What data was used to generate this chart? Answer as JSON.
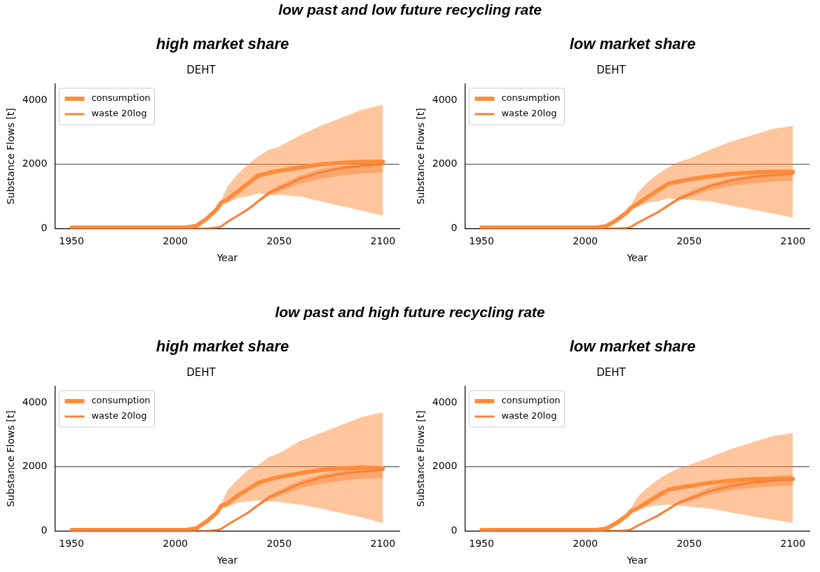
{
  "chart_data": [
    {
      "type": "line",
      "title": "DEHT",
      "subtitle": "high market share",
      "annotations": [
        "low past and low future recycling rate"
      ],
      "xlabel": "Year",
      "ylabel": "Substance Flows [t]",
      "xlim": [
        1942,
        2108
      ],
      "ylim": [
        0,
        4500
      ],
      "xticks": [
        1950,
        2000,
        2050,
        2100
      ],
      "yticks": [
        0,
        2000,
        4000
      ],
      "legend": "top left",
      "ref_lines": [
        {
          "axis": "y",
          "value": 2000,
          "color": "#000000"
        }
      ],
      "x": [
        1950,
        2005,
        2010,
        2015,
        2020,
        2022,
        2025,
        2030,
        2035,
        2040,
        2045,
        2050,
        2060,
        2070,
        2080,
        2090,
        2100
      ],
      "series": [
        {
          "name": "consumption",
          "color": "#ff8c3a",
          "values": [
            30,
            30,
            80,
            300,
            600,
            800,
            900,
            1150,
            1400,
            1650,
            1730,
            1800,
            1900,
            2000,
            2050,
            2080,
            2080
          ],
          "lower": [
            null,
            null,
            null,
            null,
            null,
            750,
            800,
            950,
            1000,
            1100,
            1050,
            1050,
            1000,
            850,
            700,
            550,
            400
          ],
          "upper": [
            null,
            null,
            null,
            null,
            null,
            850,
            1300,
            1700,
            2000,
            2250,
            2450,
            2550,
            2900,
            3200,
            3450,
            3700,
            3850
          ]
        },
        {
          "name": "waste 20log",
          "color": "#f5823a",
          "values": [
            0,
            0,
            0,
            0,
            30,
            60,
            200,
            400,
            600,
            850,
            1100,
            1250,
            1550,
            1750,
            1880,
            1950,
            2000
          ],
          "lower": [
            null,
            null,
            null,
            null,
            20,
            50,
            180,
            370,
            560,
            800,
            1030,
            1150,
            1400,
            1550,
            1650,
            1720,
            1750
          ],
          "upper": [
            null,
            null,
            null,
            null,
            40,
            70,
            220,
            430,
            640,
            900,
            1170,
            1350,
            1650,
            1850,
            1950,
            2050,
            2100
          ]
        }
      ]
    },
    {
      "type": "line",
      "title": "DEHT",
      "subtitle": "low market share",
      "xlabel": "Year",
      "ylabel": "Substance Flows [t]",
      "xlim": [
        1942,
        2108
      ],
      "ylim": [
        0,
        4500
      ],
      "xticks": [
        1950,
        2000,
        2050,
        2100
      ],
      "yticks": [
        0,
        2000,
        4000
      ],
      "legend": "top left",
      "ref_lines": [
        {
          "axis": "y",
          "value": 2000,
          "color": "#000000"
        }
      ],
      "x": [
        1950,
        2005,
        2010,
        2015,
        2020,
        2022,
        2025,
        2030,
        2035,
        2040,
        2045,
        2050,
        2060,
        2070,
        2080,
        2090,
        2100
      ],
      "series": [
        {
          "name": "consumption",
          "color": "#ff8c3a",
          "values": [
            30,
            30,
            70,
            260,
            500,
            650,
            760,
            980,
            1190,
            1400,
            1470,
            1530,
            1620,
            1700,
            1740,
            1770,
            1770
          ],
          "lower": [
            null,
            null,
            null,
            null,
            null,
            640,
            680,
            810,
            850,
            940,
            900,
            900,
            850,
            720,
            600,
            470,
            340
          ],
          "upper": [
            null,
            null,
            null,
            null,
            null,
            720,
            1100,
            1450,
            1700,
            1900,
            2080,
            2170,
            2450,
            2700,
            2900,
            3100,
            3200
          ]
        },
        {
          "name": "waste 20log",
          "color": "#f5823a",
          "values": [
            0,
            0,
            0,
            0,
            20,
            50,
            170,
            340,
            510,
            720,
            930,
            1060,
            1320,
            1490,
            1600,
            1660,
            1700
          ],
          "lower": [
            null,
            null,
            null,
            null,
            15,
            40,
            150,
            310,
            480,
            680,
            870,
            980,
            1190,
            1320,
            1400,
            1460,
            1490
          ],
          "upper": [
            null,
            null,
            null,
            null,
            35,
            60,
            190,
            370,
            540,
            760,
            990,
            1150,
            1400,
            1570,
            1660,
            1740,
            1790
          ]
        }
      ]
    },
    {
      "type": "line",
      "title": "DEHT",
      "subtitle": "high market share",
      "annotations": [
        "low past and high future recycling rate"
      ],
      "xlabel": "Year",
      "ylabel": "Substance Flows [t]",
      "xlim": [
        1942,
        2108
      ],
      "ylim": [
        0,
        4500
      ],
      "xticks": [
        1950,
        2000,
        2050,
        2100
      ],
      "yticks": [
        0,
        2000,
        4000
      ],
      "legend": "top left",
      "ref_lines": [
        {
          "axis": "y",
          "value": 2000,
          "color": "#000000"
        }
      ],
      "x": [
        1950,
        2005,
        2010,
        2015,
        2020,
        2022,
        2025,
        2030,
        2035,
        2040,
        2045,
        2050,
        2060,
        2070,
        2080,
        2090,
        2100
      ],
      "series": [
        {
          "name": "consumption",
          "color": "#ff8c3a",
          "values": [
            30,
            30,
            80,
            290,
            570,
            780,
            850,
            1100,
            1300,
            1500,
            1600,
            1680,
            1800,
            1900,
            1950,
            1980,
            1950
          ],
          "lower": [
            null,
            null,
            null,
            null,
            null,
            700,
            750,
            880,
            920,
            950,
            920,
            900,
            820,
            700,
            560,
            420,
            250
          ],
          "upper": [
            null,
            null,
            null,
            null,
            null,
            820,
            1250,
            1600,
            1900,
            2050,
            2300,
            2420,
            2800,
            3050,
            3300,
            3550,
            3700
          ]
        },
        {
          "name": "waste 20log",
          "color": "#f5823a",
          "values": [
            0,
            0,
            0,
            0,
            30,
            60,
            190,
            380,
            570,
            810,
            1040,
            1180,
            1470,
            1660,
            1780,
            1850,
            1900
          ],
          "lower": [
            null,
            null,
            null,
            null,
            20,
            50,
            170,
            350,
            530,
            760,
            980,
            1090,
            1330,
            1470,
            1560,
            1630,
            1650
          ],
          "upper": [
            null,
            null,
            null,
            null,
            40,
            70,
            210,
            410,
            610,
            860,
            1110,
            1280,
            1570,
            1760,
            1860,
            1950,
            2000
          ]
        }
      ]
    },
    {
      "type": "line",
      "title": "DEHT",
      "subtitle": "low market share",
      "xlabel": "Year",
      "ylabel": "Substance Flows [t]",
      "xlim": [
        1942,
        2108
      ],
      "ylim": [
        0,
        4500
      ],
      "xticks": [
        1950,
        2000,
        2050,
        2100
      ],
      "yticks": [
        0,
        2000,
        4000
      ],
      "legend": "top left",
      "ref_lines": [
        {
          "axis": "y",
          "value": 2000,
          "color": "#000000"
        }
      ],
      "x": [
        1950,
        2005,
        2010,
        2015,
        2020,
        2022,
        2025,
        2030,
        2035,
        2040,
        2045,
        2050,
        2060,
        2070,
        2080,
        2090,
        2100
      ],
      "series": [
        {
          "name": "consumption",
          "color": "#ff8c3a",
          "values": [
            30,
            30,
            70,
            250,
            480,
            620,
            700,
            900,
            1100,
            1280,
            1350,
            1400,
            1500,
            1570,
            1610,
            1630,
            1620
          ],
          "lower": [
            null,
            null,
            null,
            null,
            null,
            600,
            650,
            750,
            800,
            820,
            780,
            760,
            700,
            580,
            460,
            350,
            250
          ],
          "upper": [
            null,
            null,
            null,
            null,
            null,
            700,
            1050,
            1350,
            1600,
            1800,
            1950,
            2050,
            2300,
            2550,
            2750,
            2950,
            3050
          ]
        },
        {
          "name": "waste 20log",
          "color": "#f5823a",
          "values": [
            0,
            0,
            0,
            0,
            20,
            50,
            160,
            320,
            480,
            680,
            880,
            1000,
            1240,
            1400,
            1500,
            1560,
            1600
          ],
          "lower": [
            null,
            null,
            null,
            null,
            15,
            35,
            140,
            295,
            450,
            640,
            830,
            920,
            1130,
            1260,
            1340,
            1390,
            1410
          ],
          "upper": [
            null,
            null,
            null,
            null,
            35,
            55,
            180,
            345,
            510,
            720,
            930,
            1080,
            1350,
            1530,
            1630,
            1700,
            1760
          ]
        }
      ]
    }
  ]
}
